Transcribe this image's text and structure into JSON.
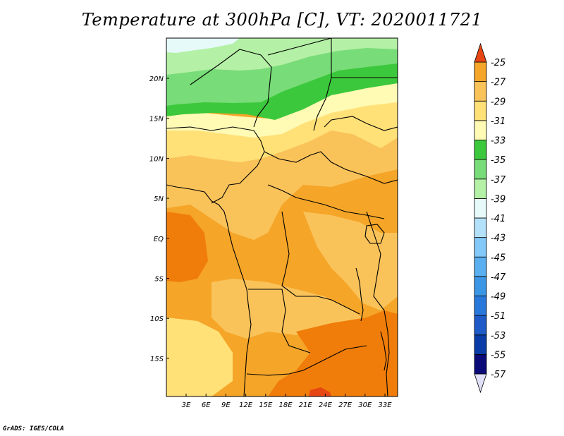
{
  "title": "Temperature at 300hPa [C], VT: 2020011721",
  "credit": "GrADS: IGES/COLA",
  "map": {
    "lon_labels": [
      "3E",
      "6E",
      "9E",
      "12E",
      "15E",
      "18E",
      "21E",
      "24E",
      "27E",
      "30E",
      "33E"
    ],
    "lat_labels": [
      "20N",
      "15N",
      "10N",
      "5N",
      "EQ",
      "5S",
      "10S",
      "15S"
    ]
  },
  "colorbar": {
    "labels": [
      "-25",
      "-27",
      "-29",
      "-31",
      "-33",
      "-35",
      "-37",
      "-39",
      "-41",
      "-43",
      "-45",
      "-47",
      "-49",
      "-51",
      "-53",
      "-55",
      "-57"
    ],
    "colors": [
      "#e0e0f8",
      "#0a0a78",
      "#0a3ca8",
      "#1e5ac8",
      "#2878dc",
      "#3c96e6",
      "#5aaff0",
      "#82c8f8",
      "#b4e1fa",
      "#e6fafa",
      "#b4f0a5",
      "#78dc78",
      "#3cc83c",
      "#fffab4",
      "#ffe178",
      "#fac35a",
      "#f5a528",
      "#f07d0a",
      "#e64614"
    ]
  },
  "color_key": {
    "green_light": "#b4f0a5",
    "green_mid": "#78dc78",
    "green_dark": "#3cc83c",
    "cyan_pale": "#e6fafa",
    "yellow_pale": "#fffab4",
    "yellow": "#ffe178",
    "orange_light": "#fac35a",
    "orange": "#f5a528",
    "orange_dark": "#f07d0a",
    "red_orange": "#e64614"
  }
}
